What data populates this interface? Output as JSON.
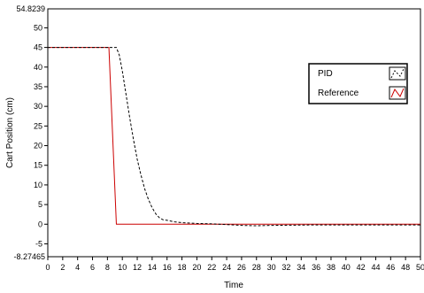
{
  "chart_data": {
    "type": "line",
    "title": "",
    "xlabel": "Time",
    "ylabel": "Cart Position (cm)",
    "xlim": [
      0,
      50
    ],
    "ylim": [
      -8.27465,
      54.8239
    ],
    "ylim_labels": [
      "-8.27465",
      "54.8239"
    ],
    "x_ticks": [
      "0",
      "2",
      "4",
      "6",
      "8",
      "10",
      "12",
      "14",
      "16",
      "18",
      "20",
      "22",
      "24",
      "26",
      "28",
      "30",
      "32",
      "34",
      "36",
      "38",
      "40",
      "42",
      "44",
      "46",
      "48",
      "50"
    ],
    "y_ticks": [
      "-5",
      "0",
      "5",
      "10",
      "15",
      "20",
      "25",
      "30",
      "35",
      "40",
      "45",
      "50"
    ],
    "grid": false,
    "legend_position": "top-right",
    "series": [
      {
        "name": "PID",
        "color": "#000000",
        "style": "dashed",
        "points": [
          [
            0,
            45
          ],
          [
            9.2,
            45
          ],
          [
            9.6,
            43
          ],
          [
            10,
            39
          ],
          [
            10.5,
            33
          ],
          [
            11,
            27
          ],
          [
            11.5,
            21.5
          ],
          [
            12,
            16.5
          ],
          [
            12.5,
            12.5
          ],
          [
            13,
            9
          ],
          [
            13.5,
            6.3
          ],
          [
            14,
            4.2
          ],
          [
            14.5,
            2.6
          ],
          [
            15,
            1.6
          ],
          [
            15.5,
            1.1
          ],
          [
            16,
            1.0
          ],
          [
            17,
            0.6
          ],
          [
            18,
            0.4
          ],
          [
            20,
            0.2
          ],
          [
            22,
            0.1
          ],
          [
            24,
            -0.1
          ],
          [
            26,
            -0.3
          ],
          [
            28,
            -0.4
          ],
          [
            30,
            -0.3
          ],
          [
            35,
            -0.2
          ],
          [
            40,
            -0.2
          ],
          [
            45,
            -0.2
          ],
          [
            50,
            -0.2
          ]
        ]
      },
      {
        "name": "Reference",
        "color": "#cc0000",
        "style": "solid",
        "points": [
          [
            0,
            45
          ],
          [
            8.2,
            45
          ],
          [
            9.2,
            0
          ],
          [
            50,
            0
          ]
        ]
      }
    ]
  }
}
